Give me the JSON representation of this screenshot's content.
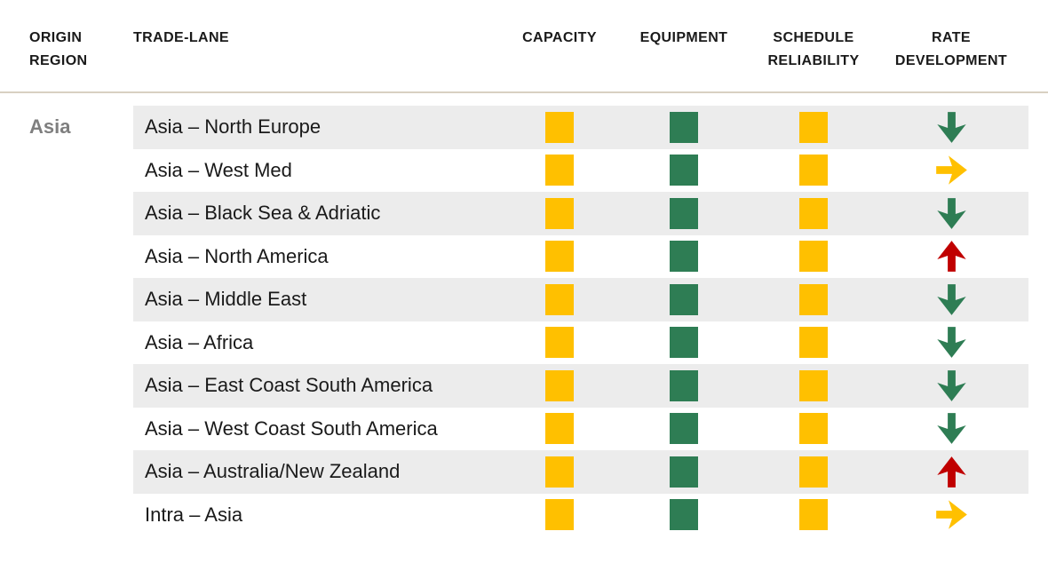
{
  "colors": {
    "yellow": "#FFC000",
    "green": "#2E7D54",
    "red": "#C00000",
    "row_stripe": "#ECECEC",
    "header_divider": "#D8D0C2",
    "origin_label_gray": "#7F7F7F",
    "text": "#1A1A1A"
  },
  "chart_data": {
    "type": "table",
    "column_headers": {
      "origin_region": "ORIGIN REGION",
      "trade_lane": "TRADE-LANE",
      "capacity": "CAPACITY",
      "equipment": "EQUIPMENT",
      "schedule_reliability": "SCHEDULE RELIABILITY",
      "rate_development": "RATE DEVELOPMENT"
    },
    "origin_region": "Asia",
    "rows": [
      {
        "trade_lane": "Asia – North Europe",
        "capacity": "yellow",
        "equipment": "green",
        "schedule_reliability": "yellow",
        "rate_development": {
          "direction": "down",
          "color": "green"
        }
      },
      {
        "trade_lane": "Asia – West Med",
        "capacity": "yellow",
        "equipment": "green",
        "schedule_reliability": "yellow",
        "rate_development": {
          "direction": "right",
          "color": "yellow"
        }
      },
      {
        "trade_lane": "Asia – Black Sea & Adriatic",
        "capacity": "yellow",
        "equipment": "green",
        "schedule_reliability": "yellow",
        "rate_development": {
          "direction": "down",
          "color": "green"
        }
      },
      {
        "trade_lane": "Asia – North America",
        "capacity": "yellow",
        "equipment": "green",
        "schedule_reliability": "yellow",
        "rate_development": {
          "direction": "up",
          "color": "red"
        }
      },
      {
        "trade_lane": "Asia – Middle East",
        "capacity": "yellow",
        "equipment": "green",
        "schedule_reliability": "yellow",
        "rate_development": {
          "direction": "down",
          "color": "green"
        }
      },
      {
        "trade_lane": "Asia – Africa",
        "capacity": "yellow",
        "equipment": "green",
        "schedule_reliability": "yellow",
        "rate_development": {
          "direction": "down",
          "color": "green"
        }
      },
      {
        "trade_lane": "Asia – East Coast South America",
        "capacity": "yellow",
        "equipment": "green",
        "schedule_reliability": "yellow",
        "rate_development": {
          "direction": "down",
          "color": "green"
        }
      },
      {
        "trade_lane": "Asia – West Coast South America",
        "capacity": "yellow",
        "equipment": "green",
        "schedule_reliability": "yellow",
        "rate_development": {
          "direction": "down",
          "color": "green"
        }
      },
      {
        "trade_lane": "Asia – Australia/New Zealand",
        "capacity": "yellow",
        "equipment": "green",
        "schedule_reliability": "yellow",
        "rate_development": {
          "direction": "up",
          "color": "red"
        }
      },
      {
        "trade_lane": "Intra – Asia",
        "capacity": "yellow",
        "equipment": "green",
        "schedule_reliability": "yellow",
        "rate_development": {
          "direction": "right",
          "color": "yellow"
        }
      }
    ]
  }
}
